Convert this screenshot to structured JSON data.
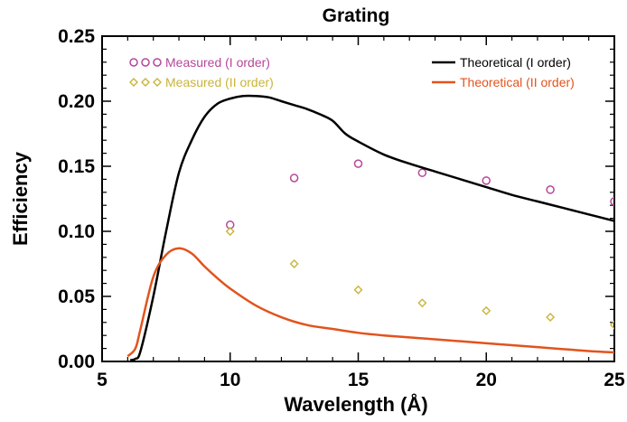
{
  "chart_data": {
    "type": "line",
    "title": "Grating",
    "xlabel": "Wavelength (Å)",
    "ylabel": "Efficiency",
    "xlim": [
      5,
      25
    ],
    "ylim": [
      0,
      0.25
    ],
    "x_ticks": [
      5,
      10,
      15,
      20,
      25
    ],
    "x_tick_labels": [
      "5",
      "10",
      "15",
      "20",
      "25"
    ],
    "y_ticks": [
      0,
      0.05,
      0.1,
      0.15,
      0.2,
      0.25
    ],
    "y_tick_labels": [
      "0.00",
      "0.05",
      "0.10",
      "0.15",
      "0.20",
      "0.25"
    ],
    "grid": false,
    "series": [
      {
        "name": "Measured (I order)",
        "kind": "scatter",
        "marker": "circle",
        "color": "#b5479a",
        "x": [
          10,
          12.5,
          15,
          17.5,
          20,
          22.5,
          25
        ],
        "y": [
          0.105,
          0.141,
          0.152,
          0.145,
          0.139,
          0.132,
          0.123
        ]
      },
      {
        "name": "Measured (II order)",
        "kind": "scatter",
        "marker": "diamond",
        "color": "#c9b43a",
        "x": [
          10,
          12.5,
          15,
          17.5,
          20,
          22.5,
          25
        ],
        "y": [
          0.1,
          0.075,
          0.055,
          0.045,
          0.039,
          0.034,
          0.028
        ]
      },
      {
        "name": "Theoretical (I order)",
        "kind": "line",
        "color": "#000000",
        "x": [
          6.1,
          6.3,
          6.5,
          7.0,
          7.5,
          8.0,
          8.5,
          9.0,
          9.5,
          10.0,
          10.5,
          11.0,
          11.5,
          12.0,
          12.5,
          13.0,
          13.5,
          14.0,
          14.5,
          15.0,
          16.0,
          17.0,
          18.0,
          19.0,
          20.0,
          21.0,
          22.0,
          23.0,
          24.0,
          25.0
        ],
        "y": [
          0.001,
          0.002,
          0.008,
          0.05,
          0.1,
          0.145,
          0.17,
          0.188,
          0.198,
          0.202,
          0.204,
          0.204,
          0.203,
          0.2,
          0.197,
          0.194,
          0.19,
          0.185,
          0.175,
          0.169,
          0.159,
          0.152,
          0.146,
          0.14,
          0.134,
          0.128,
          0.123,
          0.118,
          0.113,
          0.108
        ]
      },
      {
        "name": "Theoretical (II order)",
        "kind": "line",
        "color": "#e2531c",
        "x": [
          6.0,
          6.3,
          6.5,
          7.0,
          7.5,
          8.0,
          8.5,
          9.0,
          9.5,
          10.0,
          11.0,
          12.0,
          13.0,
          14.0,
          15.0,
          16.0,
          18.0,
          20.0,
          22.0,
          24.0,
          25.0
        ],
        "y": [
          0.004,
          0.01,
          0.025,
          0.065,
          0.082,
          0.087,
          0.083,
          0.073,
          0.064,
          0.056,
          0.043,
          0.034,
          0.028,
          0.025,
          0.022,
          0.02,
          0.017,
          0.014,
          0.011,
          0.008,
          0.007
        ]
      }
    ],
    "legend": [
      {
        "placement": "top-left",
        "entries": [
          "Measured (I order)",
          "Measured (II order)"
        ]
      },
      {
        "placement": "top-right",
        "entries": [
          "Theoretical (I order)",
          "Theoretical (II order)"
        ]
      }
    ]
  }
}
